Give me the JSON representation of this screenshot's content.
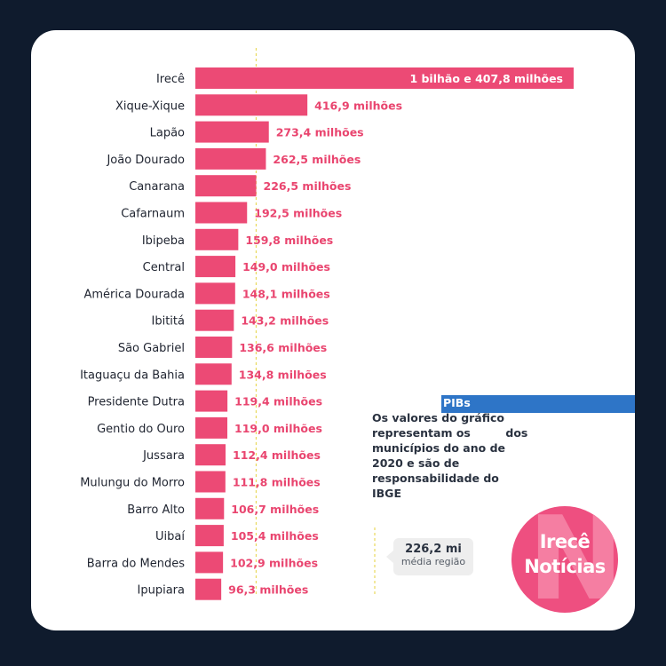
{
  "chart_data": {
    "type": "bar",
    "orientation": "horizontal",
    "categories": [
      "Irecê",
      "Xique-Xique",
      "Lapão",
      "João Dourado",
      "Canarana",
      "Cafarnaum",
      "Ibipeba",
      "Central",
      "América Dourada",
      "Ibititá",
      "São Gabriel",
      "Itaguaçu da Bahia",
      "Presidente Dutra",
      "Gentio do Ouro",
      "Jussara",
      "Mulungu do Morro",
      "Barro Alto",
      "Uibaí",
      "Barra do Mendes",
      "Ipupiara"
    ],
    "values": [
      1407.8,
      416.9,
      273.4,
      262.5,
      226.5,
      192.5,
      159.8,
      149.0,
      148.1,
      143.2,
      136.6,
      134.8,
      119.4,
      119.0,
      112.4,
      111.8,
      106.7,
      105.4,
      102.9,
      96.3
    ],
    "value_labels": [
      "1 bilhão e 407,8 milhões",
      "416,9 milhões",
      "273,4 milhões",
      "262,5 milhões",
      "226,5 milhões",
      "192,5 milhões",
      "159,8 milhões",
      "149,0 milhões",
      "148,1 milhões",
      "143,2 milhões",
      "136,6 milhões",
      "134,8 milhões",
      "119,4 milhões",
      "119,0 milhões",
      "112,4 milhões",
      "111,8 milhões",
      "106,7 milhões",
      "105,4 milhões",
      "102,9 milhões",
      "96,3 milhões"
    ],
    "reference_line": 226.2,
    "bar_color": "#ec4a75",
    "xlim": [
      0,
      1407.8
    ],
    "grid": false,
    "legend": "none"
  },
  "note": {
    "text_before": "Os valores do gráfico representam os",
    "highlight": "PIBs",
    "text_after": "dos municípios do ano de 2020 e são de responsabilidade do IBGE"
  },
  "average": {
    "value": "226,2 mi",
    "caption": "média região"
  },
  "logo": {
    "line1": "Irecê",
    "line2": "Notícias"
  },
  "colors": {
    "background": "#0f1b2d",
    "card": "#ffffff",
    "bar": "#ec4a75",
    "highlight": "#2e75c7",
    "logo": "#ee4f80"
  }
}
